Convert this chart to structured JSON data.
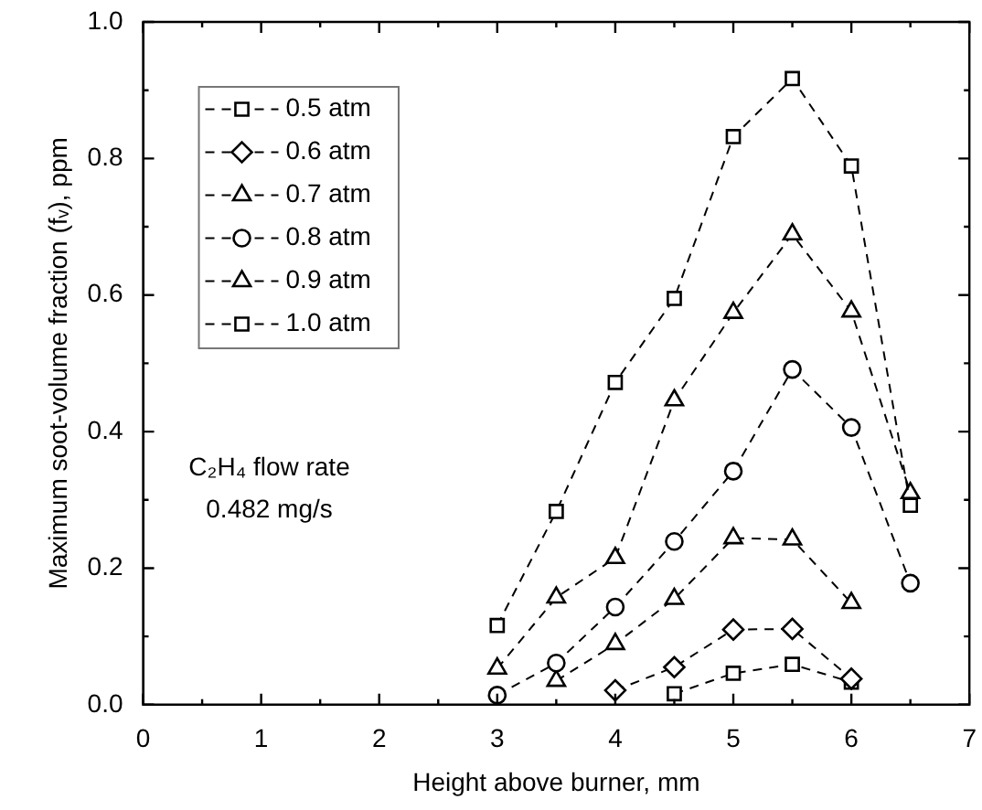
{
  "chart_data": {
    "type": "line",
    "xlabel": "Height above burner, mm",
    "ylabel": "Maximum soot-volume fraction (fᵥ), ppm",
    "xlim": [
      0,
      7
    ],
    "ylim": [
      0,
      1
    ],
    "xticks": [
      0,
      {
        "value": 0.5,
        "label": null
      },
      1,
      {
        "value": 1.5,
        "label": null
      },
      2,
      {
        "value": 2.5,
        "label": null
      },
      3,
      {
        "value": 3.5,
        "label": null
      },
      4,
      {
        "value": 4.5,
        "label": null
      },
      5,
      {
        "value": 5.5,
        "label": null
      },
      6,
      {
        "value": 6.5,
        "label": null
      },
      7
    ],
    "yticks": [
      {
        "value": 0,
        "label": "0.0"
      },
      {
        "value": 0.1,
        "label": null
      },
      {
        "value": 0.2,
        "label": "0.2"
      },
      {
        "value": 0.3,
        "label": null
      },
      {
        "value": 0.4,
        "label": "0.4"
      },
      {
        "value": 0.5,
        "label": null
      },
      {
        "value": 0.6,
        "label": "0.6"
      },
      {
        "value": 0.7,
        "label": null
      },
      {
        "value": 0.8,
        "label": "0.8"
      },
      {
        "value": 0.9,
        "label": null
      },
      {
        "value": 1,
        "label": "1.0"
      }
    ],
    "grid": false,
    "legend": "top left",
    "line_style": "dashed",
    "annotations": [
      "C₂H₄ flow rate",
      "0.482 mg/s"
    ],
    "series": [
      {
        "name": "0.5 atm",
        "color": "#000000",
        "marker": "square",
        "x": [
          4.5,
          5,
          5.5,
          6
        ],
        "values": [
          0.016,
          0.046,
          0.059,
          0.033
        ]
      },
      {
        "name": "0.6 atm",
        "color": "#000000",
        "marker": "diamond",
        "x": [
          4,
          4.5,
          5,
          5.5,
          6
        ],
        "values": [
          0.021,
          0.055,
          0.11,
          0.111,
          0.038
        ]
      },
      {
        "name": "0.7 atm",
        "color": "#000000",
        "marker": "triangle",
        "x": [
          3.5,
          4,
          4.5,
          5,
          5.5,
          6
        ],
        "values": [
          0.035,
          0.089,
          0.155,
          0.244,
          0.242,
          0.149
        ]
      },
      {
        "name": "0.8 atm",
        "color": "#000000",
        "marker": "circle",
        "x": [
          3,
          3.5,
          4,
          4.5,
          5,
          5.5,
          6,
          6.5
        ],
        "values": [
          0.014,
          0.061,
          0.143,
          0.239,
          0.342,
          0.491,
          0.406,
          0.178
        ]
      },
      {
        "name": "0.9 atm",
        "color": "#000000",
        "marker": "triangle",
        "x": [
          3,
          3.5,
          4,
          4.5,
          5,
          5.5,
          6,
          6.5
        ],
        "values": [
          0.053,
          0.157,
          0.215,
          0.446,
          0.574,
          0.689,
          0.576,
          0.31
        ]
      },
      {
        "name": "1.0 atm",
        "color": "#000000",
        "marker": "square",
        "x": [
          3,
          3.5,
          4,
          4.5,
          5,
          5.5,
          6,
          6.5
        ],
        "values": [
          0.116,
          0.283,
          0.472,
          0.595,
          0.832,
          0.917,
          0.789,
          0.292
        ]
      }
    ]
  }
}
